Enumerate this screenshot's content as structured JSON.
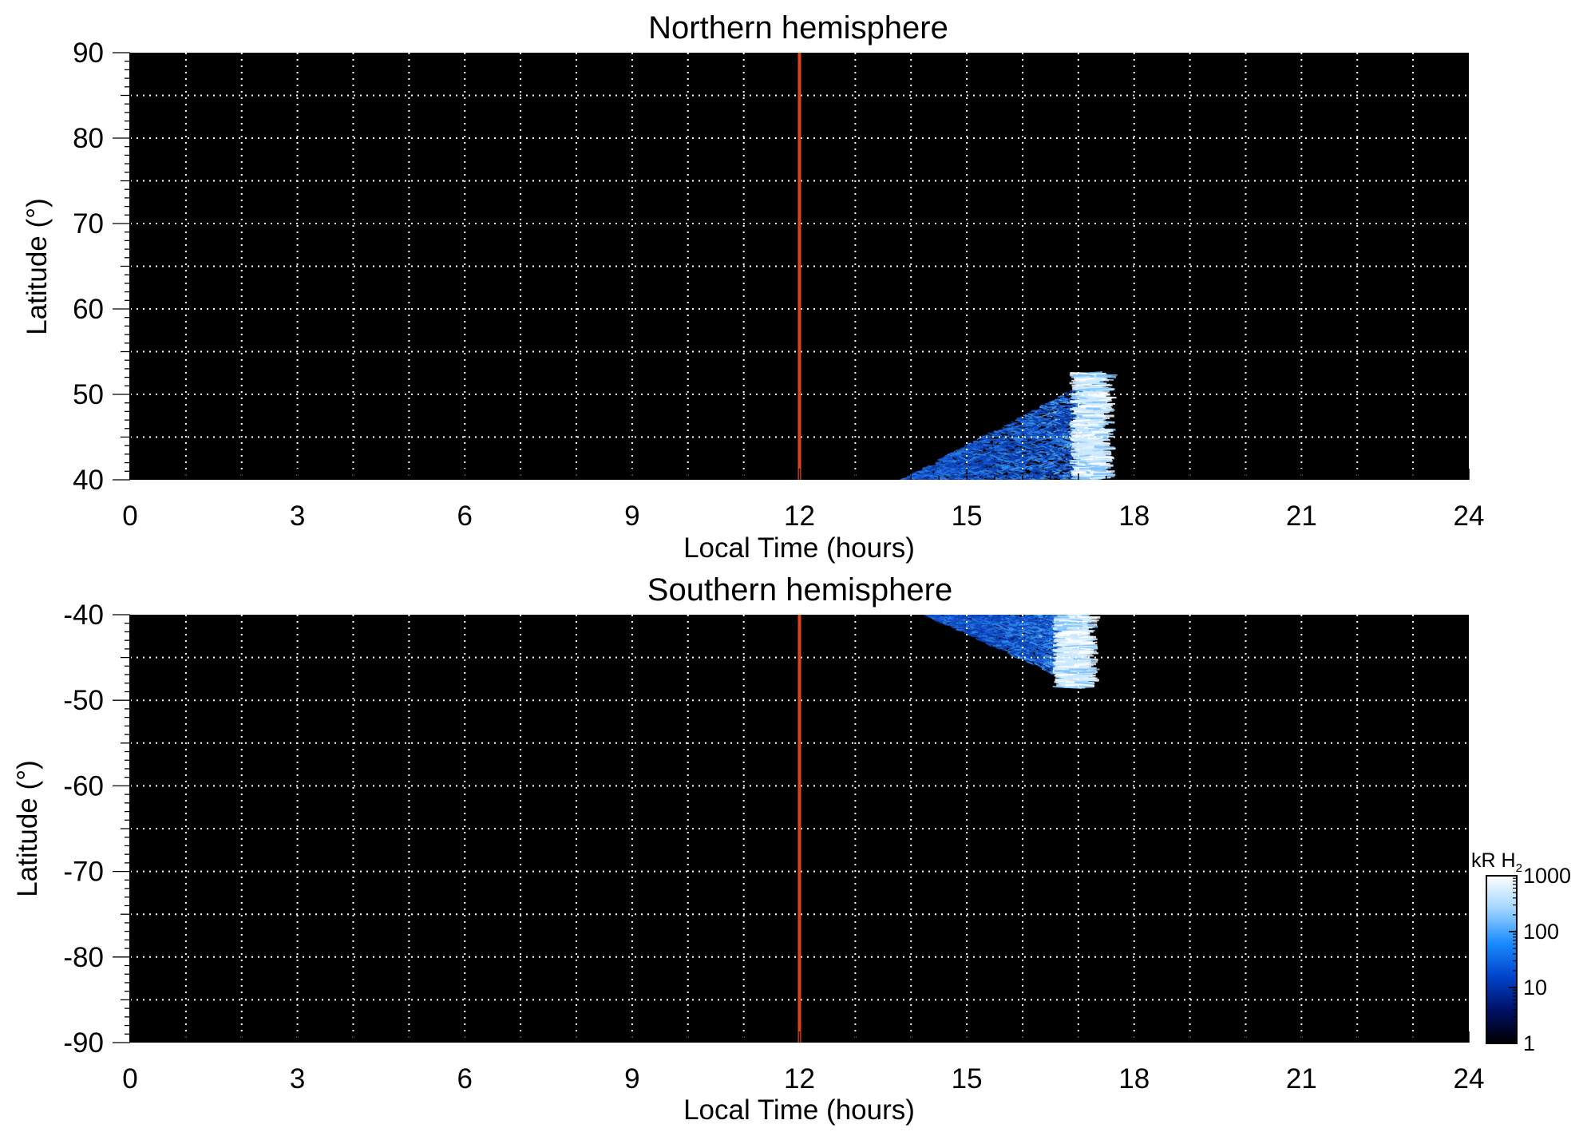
{
  "chart_data": [
    {
      "type": "heatmap",
      "title": "Northern hemisphere",
      "xlabel": "Local Time (hours)",
      "ylabel": "Latitude (°)",
      "xlim": [
        0,
        24
      ],
      "ylim": [
        40,
        90
      ],
      "xticks": [
        0,
        3,
        6,
        9,
        12,
        15,
        18,
        21,
        24
      ],
      "xtick_labels": [
        "0",
        "3",
        "6",
        "9",
        "12",
        "15",
        "18",
        "21",
        "24"
      ],
      "yticks": [
        40,
        50,
        60,
        70,
        80,
        90
      ],
      "ytick_labels": [
        "40",
        "50",
        "60",
        "70",
        "80",
        "90"
      ],
      "grid": true,
      "background": "#000000",
      "marker_line": {
        "x": 12,
        "color": "#e0421a"
      },
      "emission": {
        "diffuse_region": {
          "lt_start": 13.8,
          "lt_end": 17.0,
          "lat_edge_start": 40,
          "lat_edge_end": 51
        },
        "bright_band": {
          "lt": [
            16.95,
            17.45
          ],
          "lat": [
            40,
            52.5
          ],
          "peak_kR": 1000
        }
      }
    },
    {
      "type": "heatmap",
      "title": "Southern hemisphere",
      "xlabel": "Local Time (hours)",
      "ylabel": "Latitude (°)",
      "xlim": [
        0,
        24
      ],
      "ylim": [
        -90,
        -40
      ],
      "xticks": [
        0,
        3,
        6,
        9,
        12,
        15,
        18,
        21,
        24
      ],
      "xtick_labels": [
        "0",
        "3",
        "6",
        "9",
        "12",
        "15",
        "18",
        "21",
        "24"
      ],
      "yticks": [
        -40,
        -50,
        -60,
        -70,
        -80,
        -90
      ],
      "ytick_labels": [
        "-40",
        "-50",
        "-60",
        "-70",
        "-80",
        "-90"
      ],
      "grid": true,
      "background": "#000000",
      "marker_line": {
        "x": 12,
        "color": "#e0421a"
      },
      "emission": {
        "diffuse_region": {
          "lt_start": 14.2,
          "lt_end": 16.9,
          "lat_edge_start": -40,
          "lat_edge_end": -48
        },
        "bright_band": {
          "lt": [
            16.65,
            17.15
          ],
          "lat": [
            -48.5,
            -40
          ],
          "peak_kR": 1000
        }
      }
    }
  ],
  "colorbar": {
    "label": "kR H",
    "label_subscript": "2",
    "scale": "log",
    "range": [
      1,
      1000
    ],
    "tick_values": [
      1000,
      100,
      10,
      1
    ],
    "tick_labels": [
      "1000",
      "100",
      "10",
      "1"
    ],
    "colors": [
      "#000000",
      "#001066",
      "#0044cc",
      "#1a8cff",
      "#9fd4ff",
      "#ffffff"
    ]
  }
}
